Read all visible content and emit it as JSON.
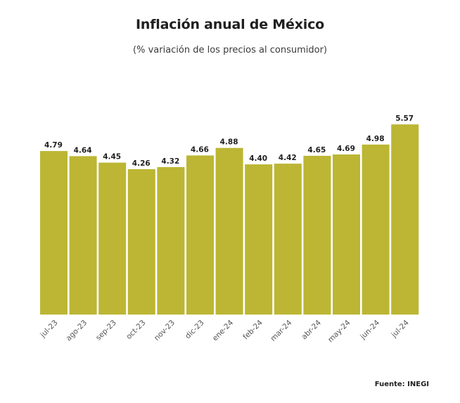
{
  "title": "Inflación anual de México",
  "subtitle": "(% variación de los precios al consumidor)",
  "source": "Fuente: INEGI",
  "colors": {
    "bar": "#bcb634",
    "text": "#1f1f1f",
    "tick_text": "#555555"
  },
  "chart_data": {
    "type": "bar",
    "title": "Inflación anual de México",
    "subtitle": "(% variación de los precios al consumidor)",
    "xlabel": "",
    "ylabel": "",
    "grid": false,
    "legend": "none",
    "ylim": [
      0,
      5.8
    ],
    "categories": [
      "jul-23",
      "ago-23",
      "sep-23",
      "oct-23",
      "nov-23",
      "dic-23",
      "ene-24",
      "feb-24",
      "mar-24",
      "abr-24",
      "may-24",
      "jun-24",
      "jul-24"
    ],
    "values": [
      4.79,
      4.64,
      4.45,
      4.26,
      4.32,
      4.66,
      4.88,
      4.4,
      4.42,
      4.65,
      4.69,
      4.98,
      5.57
    ],
    "data_labels": [
      "4.79",
      "4.64",
      "4.45",
      "4.26",
      "4.32",
      "4.66",
      "4.88",
      "4.40",
      "4.42",
      "4.65",
      "4.69",
      "4.98",
      "5.57"
    ]
  }
}
